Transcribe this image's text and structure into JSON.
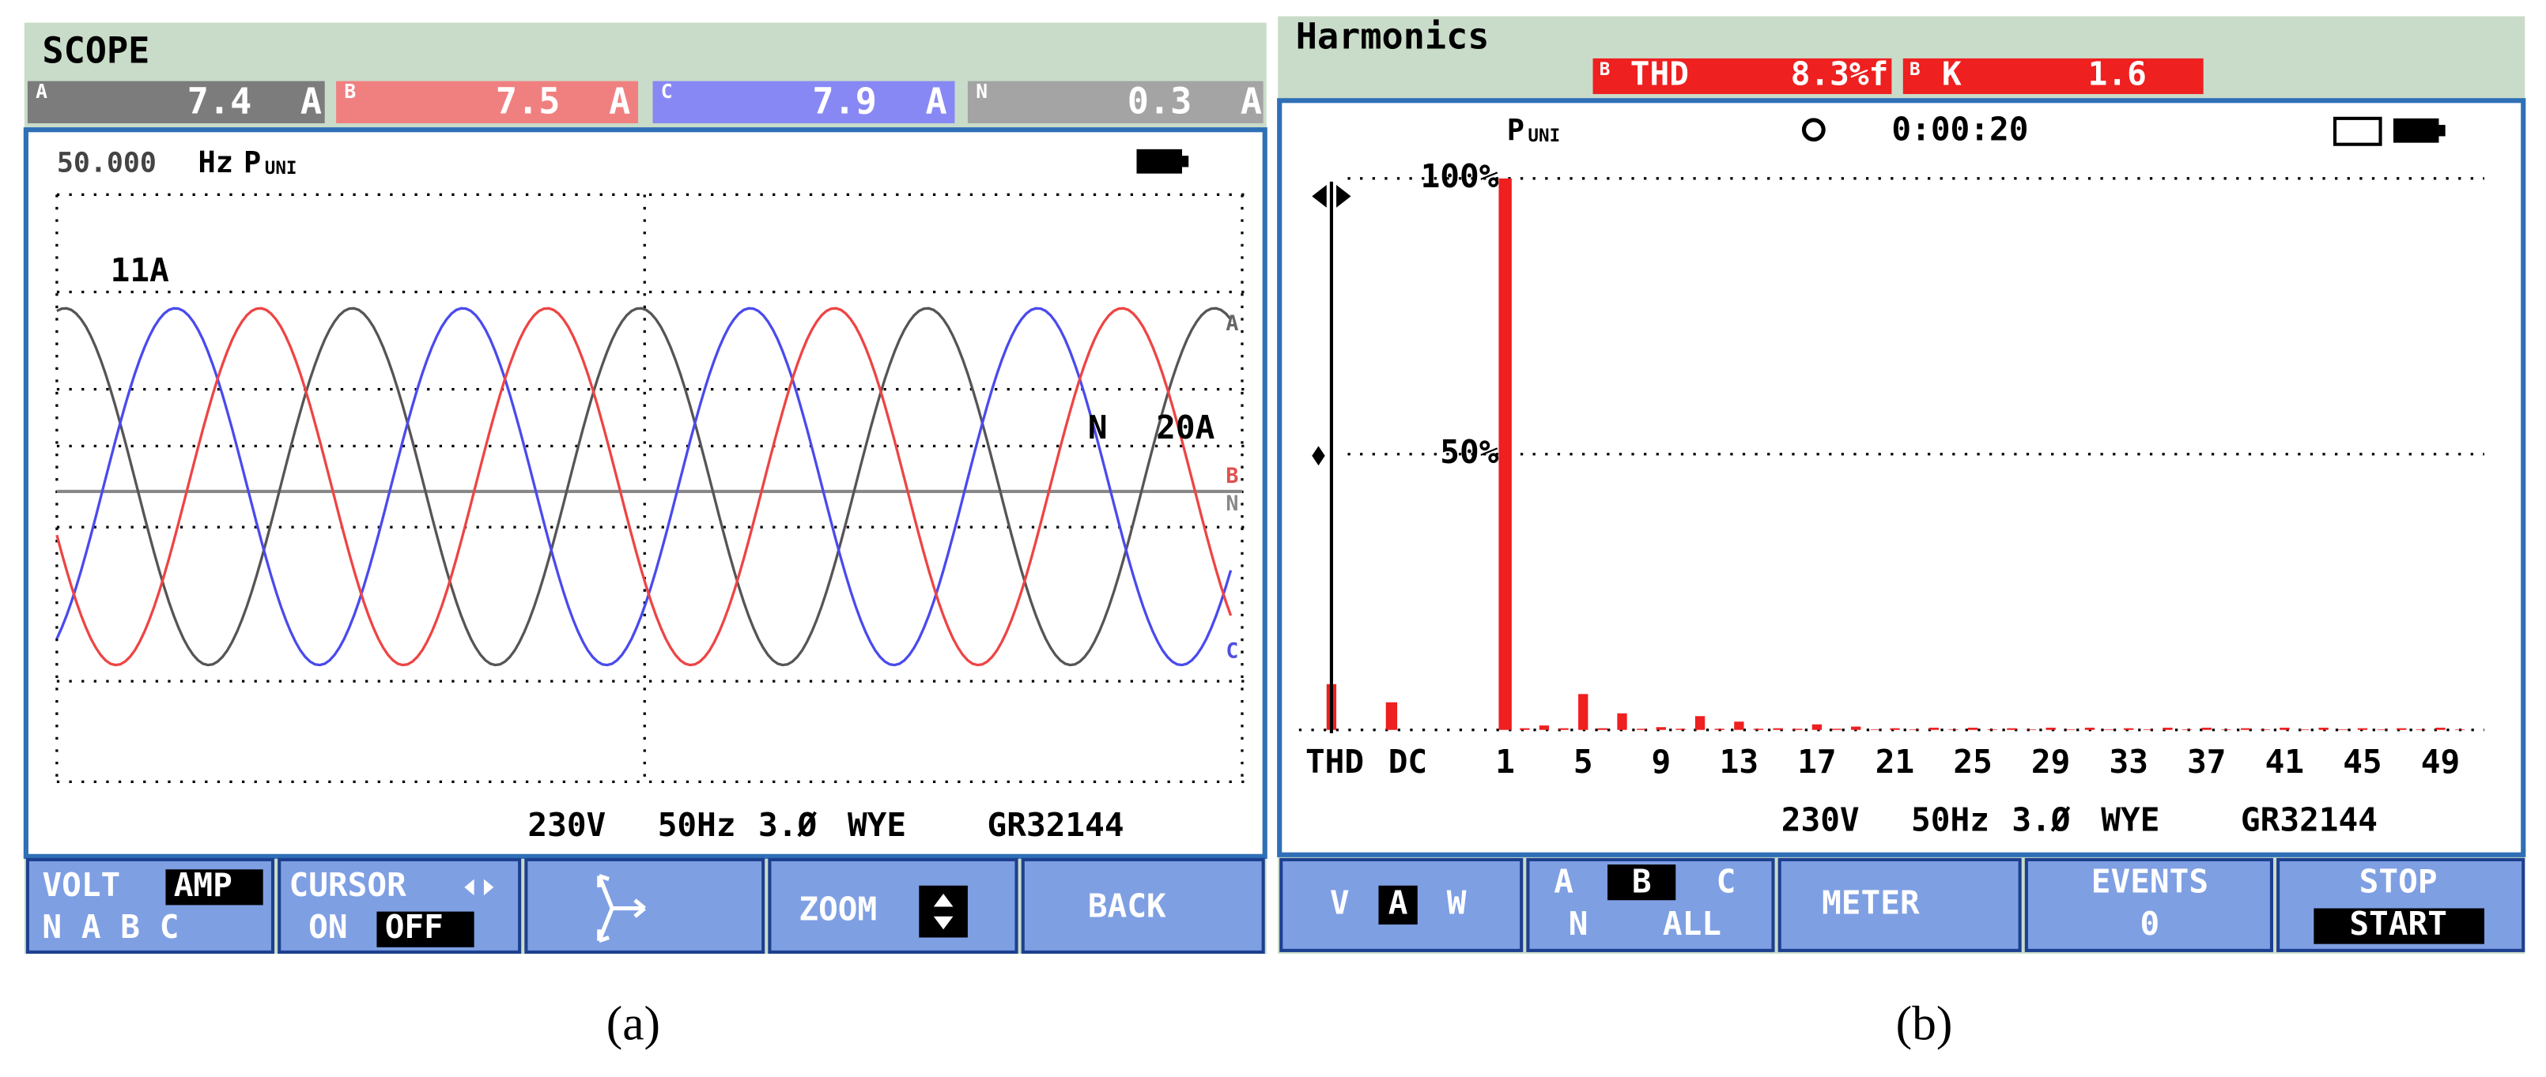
{
  "scope": {
    "title": "SCOPE",
    "readings": [
      {
        "phase": "A",
        "value": "7.4",
        "unit": "A",
        "color": "#7c7c7c"
      },
      {
        "phase": "B",
        "value": "7.5",
        "unit": "A",
        "color": "#f08080"
      },
      {
        "phase": "C",
        "value": "7.9",
        "unit": "A",
        "color": "#8888f4"
      },
      {
        "phase": "N",
        "value": "0.3",
        "unit": "A",
        "color": "#a4a4a4"
      }
    ],
    "frequency": "50.000",
    "frequency_unit": "Hz",
    "mode": "P",
    "mode_sub": "UNI",
    "trace_labels": {
      "scale_top": "11A",
      "neutral": "N",
      "neutral_scale": "20A",
      "a": "A",
      "b": "B",
      "n": "N",
      "c": "C"
    },
    "status": [
      "230V",
      "50Hz",
      "3.Ø",
      "WYE",
      "GR32144"
    ],
    "softkeys": {
      "volt": "VOLT",
      "amp": "AMP",
      "phases": "N A B C",
      "cursor": "CURSOR",
      "on": "ON",
      "off": "OFF",
      "zoom": "ZOOM",
      "back": "BACK"
    }
  },
  "harmonics": {
    "title": "Harmonics",
    "thd_box": {
      "phase": "B",
      "label": "THD",
      "value": "8.3%f"
    },
    "k_box": {
      "phase": "B",
      "label": "K",
      "value": "1.6"
    },
    "mode": "P",
    "mode_sub": "UNI",
    "timer": "0:00:20",
    "color": "#ee2020",
    "ylim": [
      0,
      100
    ],
    "yticks": [
      {
        "value": 100,
        "label": "100%"
      },
      {
        "value": 50,
        "label": "50%"
      }
    ],
    "thd_label": "THD",
    "thd": 8.3,
    "dc_label": "DC",
    "dc": 5,
    "xticks": [
      1,
      5,
      9,
      13,
      17,
      21,
      25,
      29,
      33,
      37,
      41,
      45,
      49
    ],
    "orders": [
      1,
      2,
      3,
      4,
      5,
      6,
      7,
      8,
      9,
      10,
      11,
      12,
      13,
      14,
      15,
      16,
      17,
      18,
      19,
      20,
      21,
      22,
      23,
      24,
      25,
      26,
      27,
      28,
      29,
      30,
      31,
      32,
      33,
      34,
      35,
      36,
      37,
      38,
      39,
      40,
      41,
      42,
      43,
      44,
      45,
      46,
      47,
      48,
      49,
      50
    ],
    "values": [
      100,
      0.3,
      0.8,
      0.3,
      6.5,
      0.3,
      3,
      0.2,
      0.5,
      0.2,
      2.5,
      0.2,
      1.5,
      0.2,
      0.3,
      0.2,
      1,
      0.2,
      0.6,
      0.1,
      0.3,
      0.1,
      0.4,
      0.1,
      0.4,
      0.1,
      0.3,
      0.1,
      0.4,
      0.1,
      0.4,
      0.1,
      0.3,
      0.1,
      0.4,
      0.1,
      0.4,
      0.1,
      0.3,
      0.1,
      0.4,
      0.1,
      0.4,
      0.1,
      0.3,
      0.1,
      0.3,
      0.1,
      0.4,
      0.1
    ],
    "status": [
      "230V",
      "50Hz",
      "3.Ø",
      "WYE",
      "GR32144"
    ],
    "softkeys": {
      "v": "V",
      "a": "A",
      "w": "W",
      "pa": "A",
      "pb": "B",
      "pc": "C",
      "pn": "N",
      "all": "ALL",
      "meter": "METER",
      "events": "EVENTS",
      "events_count": "0",
      "stop": "STOP",
      "start": "START"
    }
  },
  "captions": [
    "(a)",
    "(b)"
  ]
}
